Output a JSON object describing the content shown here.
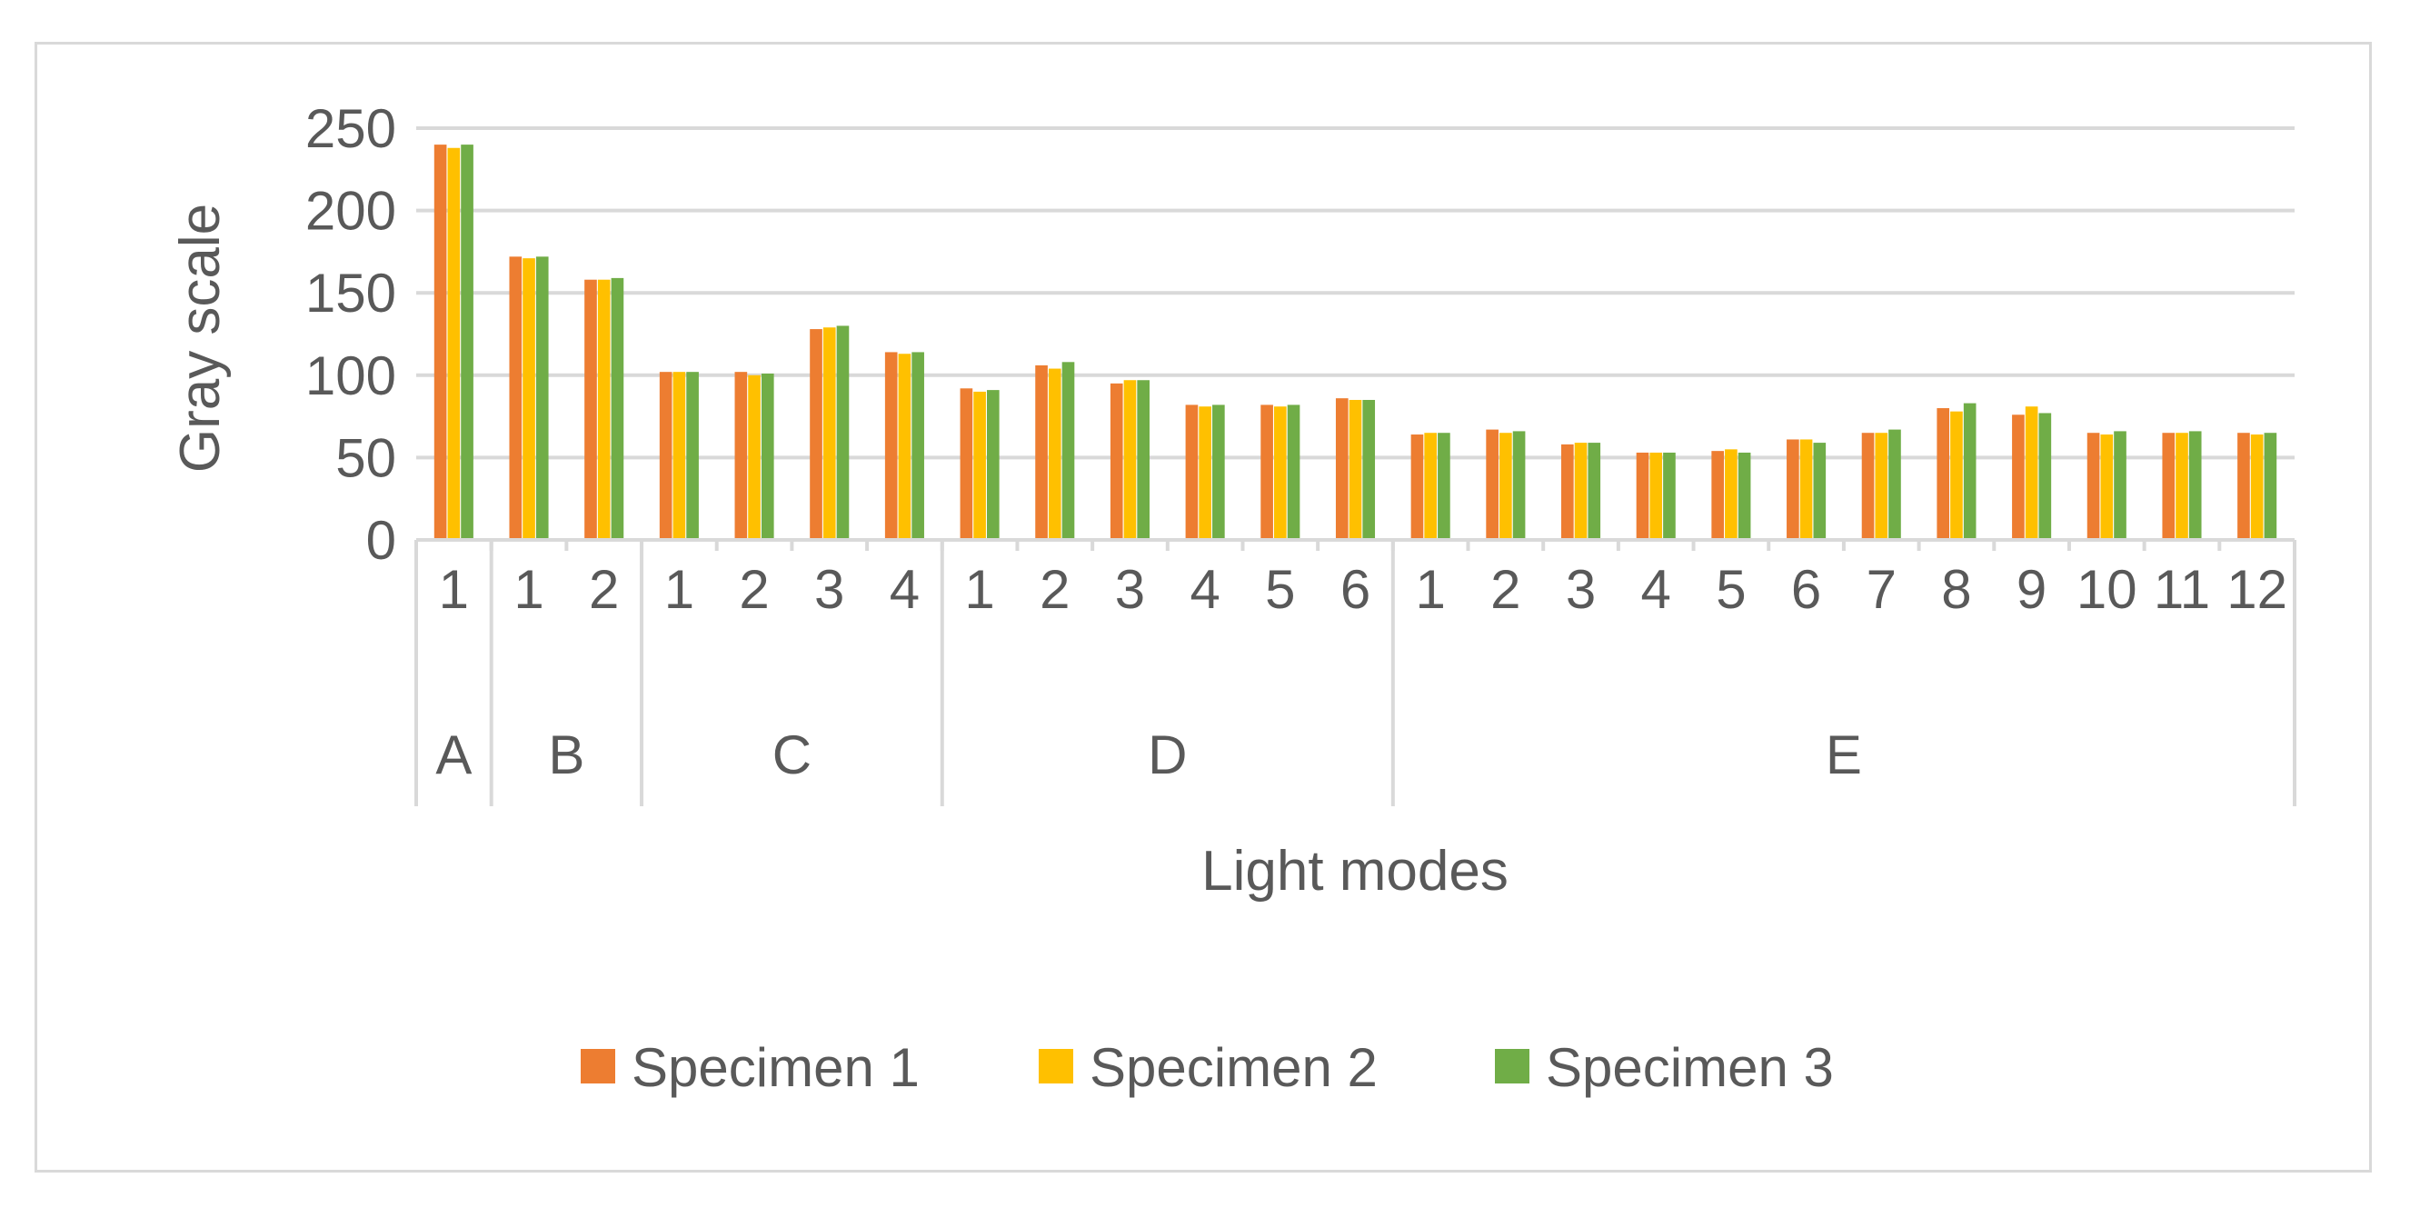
{
  "chart_data": {
    "type": "bar",
    "title": "",
    "xlabel": "Light modes",
    "ylabel": "Gray scale",
    "ylim": [
      0,
      250
    ],
    "yticks": [
      0,
      50,
      100,
      150,
      200,
      250
    ],
    "grid": true,
    "legend_position": "bottom",
    "groups": [
      {
        "label": "A",
        "count": 1
      },
      {
        "label": "B",
        "count": 2
      },
      {
        "label": "C",
        "count": 4
      },
      {
        "label": "D",
        "count": 6
      },
      {
        "label": "E",
        "count": 12
      }
    ],
    "categories": [
      "1",
      "1",
      "2",
      "1",
      "2",
      "3",
      "4",
      "1",
      "2",
      "3",
      "4",
      "5",
      "6",
      "1",
      "2",
      "3",
      "4",
      "5",
      "6",
      "7",
      "8",
      "9",
      "10",
      "11",
      "12"
    ],
    "series": [
      {
        "name": "Specimen 1",
        "color": "#ed7d31",
        "values": [
          240,
          172,
          158,
          102,
          102,
          128,
          114,
          92,
          106,
          95,
          82,
          82,
          86,
          64,
          67,
          58,
          53,
          54,
          61,
          65,
          80,
          76,
          65,
          65,
          65
        ]
      },
      {
        "name": "Specimen 2",
        "color": "#ffc000",
        "values": [
          238,
          171,
          158,
          102,
          100,
          129,
          113,
          90,
          104,
          97,
          81,
          81,
          85,
          65,
          65,
          59,
          53,
          55,
          61,
          65,
          78,
          81,
          64,
          65,
          64
        ]
      },
      {
        "name": "Specimen 3",
        "color": "#70ad47",
        "values": [
          240,
          172,
          159,
          102,
          101,
          130,
          114,
          91,
          108,
          97,
          82,
          82,
          85,
          65,
          66,
          59,
          53,
          53,
          59,
          67,
          83,
          77,
          66,
          66,
          65
        ]
      }
    ]
  }
}
